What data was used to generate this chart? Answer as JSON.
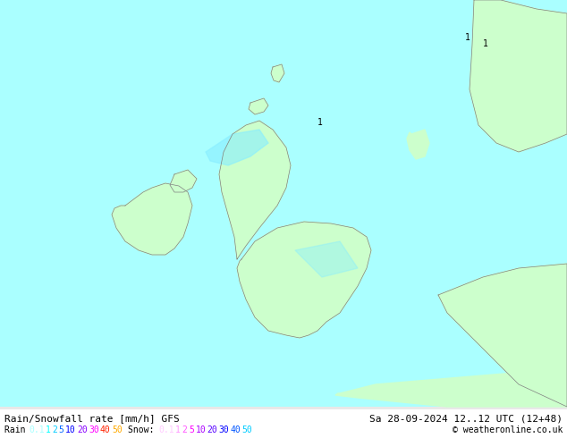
{
  "title_line1": "Rain/Snowfall rate [mm/h] GFS",
  "title_line1_right": "Sa 28-09-2024 12..12 UTC (12+48)",
  "title_line2_left_label": "Rain",
  "title_line2_right_label": "Snow:",
  "title_line2_copyright": "© weatheronline.co.uk",
  "rain_values": [
    "0.1",
    "1",
    "2",
    "5",
    "10",
    "20",
    "30",
    "40",
    "50"
  ],
  "snow_values": [
    "0.1",
    "1",
    "2",
    "5",
    "10",
    "20",
    "30",
    "40",
    "50"
  ],
  "rain_colors": [
    "#aaffff",
    "#00ffff",
    "#00aaff",
    "#0055ff",
    "#0000ff",
    "#aa00ff",
    "#ff00ff",
    "#ff0000",
    "#ffaa00"
  ],
  "snow_colors": [
    "#ffccff",
    "#ff99ff",
    "#ff55ff",
    "#ff00ff",
    "#aa00ff",
    "#5500ff",
    "#0000ff",
    "#0055ff",
    "#00aaff"
  ],
  "bg_color": "#e8e8e8",
  "sea_color": "#aaffff",
  "land_color": "#ccffcc",
  "border_color": "#808080",
  "text_color": "#000000",
  "fig_width": 6.34,
  "fig_height": 4.9,
  "dpi": 100
}
